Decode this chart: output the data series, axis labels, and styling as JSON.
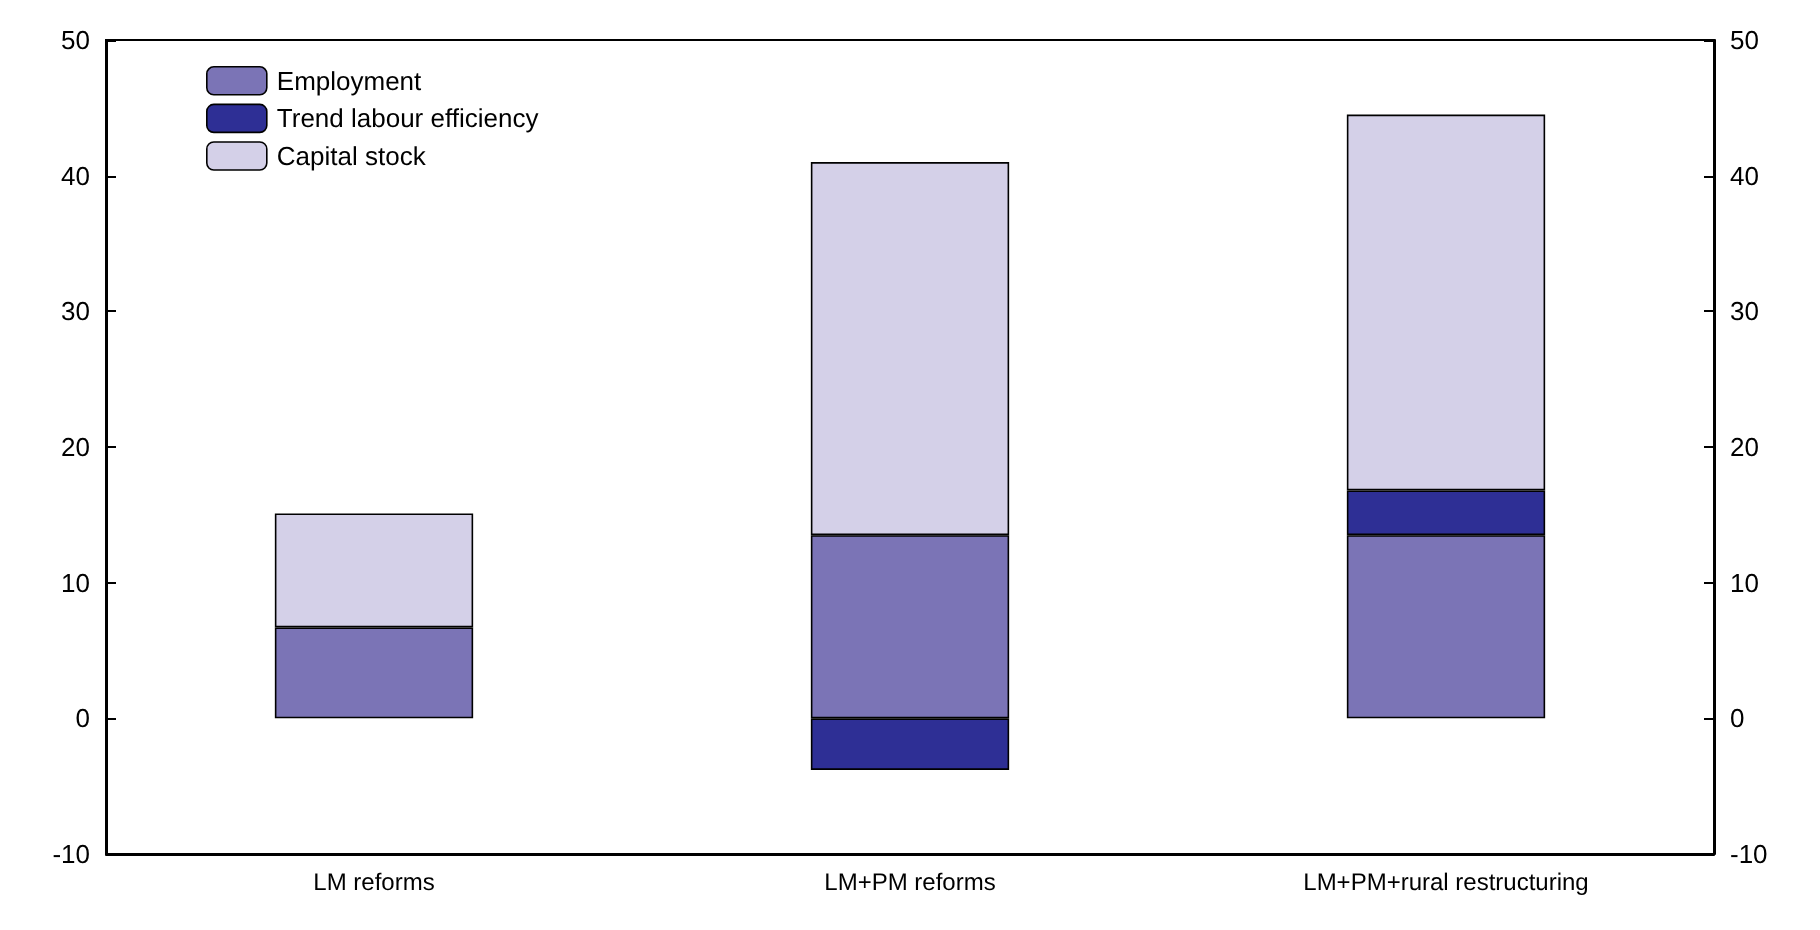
{
  "chart_data": {
    "type": "bar",
    "stacked": true,
    "categories": [
      "LM reforms",
      "LM+PM reforms",
      "LM+PM+rural restructuring"
    ],
    "series": [
      {
        "name": "Employment",
        "color": "#7b74b6",
        "values": [
          6.7,
          13.5,
          13.5
        ]
      },
      {
        "name": "Trend labour efficiency",
        "color": "#2e2f95",
        "values": [
          null,
          -3.8,
          3.3
        ]
      },
      {
        "name": "Capital stock",
        "color": "#d4d0e8",
        "values": [
          8.4,
          27.5,
          27.7
        ]
      }
    ],
    "ylim": [
      -10,
      50
    ],
    "yticks": [
      -10,
      0,
      10,
      20,
      30,
      40,
      50
    ],
    "y2lim": [
      -10,
      50
    ],
    "y2ticks": [
      -10,
      0,
      10,
      20,
      30,
      40,
      50
    ],
    "grid": false,
    "legend": "top left"
  }
}
